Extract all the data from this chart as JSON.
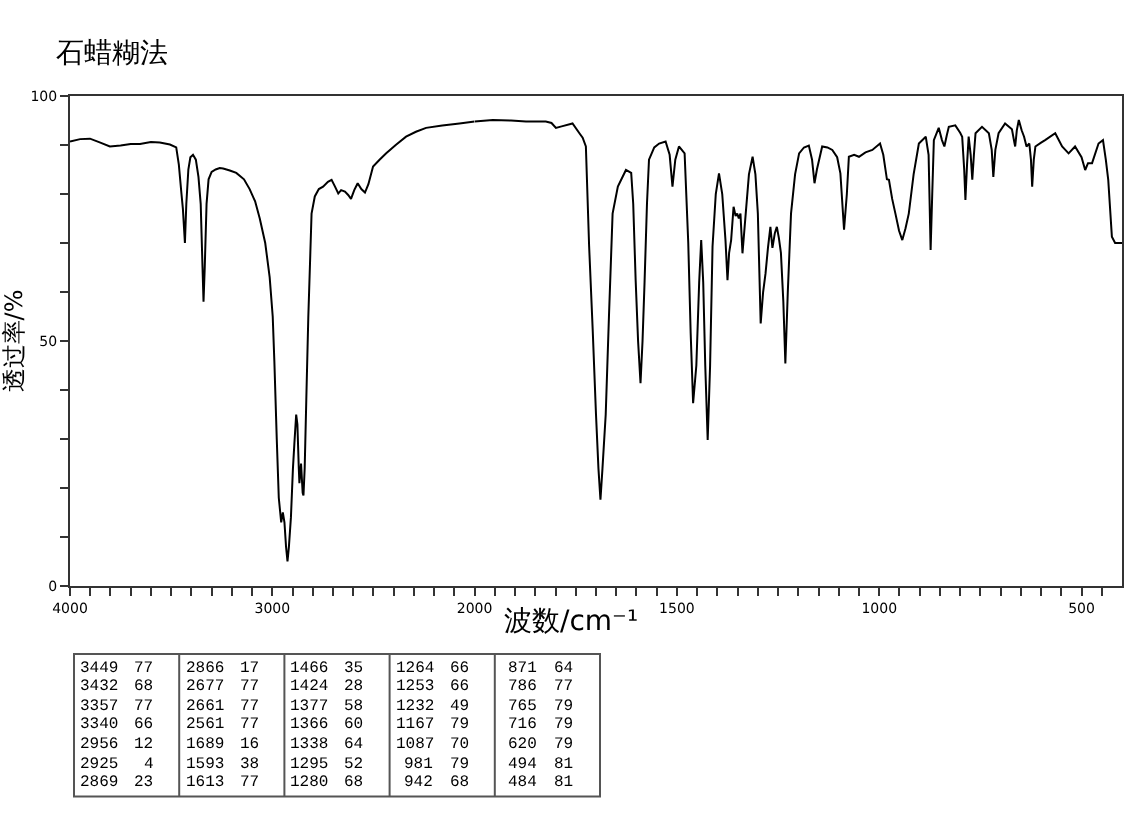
{
  "chart_data": [
    {
      "type": "line",
      "title": "石蜡糊法",
      "ylabel": "透过率/%",
      "x": [
        4000,
        3950,
        3901,
        3850,
        3803,
        3750,
        3700,
        3654,
        3600,
        3556,
        3506,
        3475,
        3462,
        3449,
        3442,
        3432,
        3425,
        3415,
        3405,
        3392,
        3378,
        3365,
        3354,
        3345,
        3340,
        3334,
        3325,
        3315,
        3300,
        3280,
        3260,
        3243,
        3210,
        3178,
        3140,
        3112,
        3085,
        3062,
        3035,
        3013,
        2998,
        2990,
        2978,
        2968,
        2956,
        2948,
        2940,
        2932,
        2925,
        2918,
        2908,
        2898,
        2891,
        2882,
        2876,
        2869,
        2866,
        2858,
        2850,
        2846,
        2840,
        2832,
        2822,
        2812,
        2806,
        2790,
        2770,
        2749,
        2725,
        2707,
        2690,
        2674,
        2660,
        2641,
        2625,
        2611,
        2595,
        2578,
        2560,
        2542,
        2525,
        2502,
        2470,
        2437,
        2390,
        2339,
        2290,
        2240,
        2160,
        2075,
        2000
      ],
      "series": [
        {
          "color": "#000000",
          "values": [
            90.7,
            91.2,
            91.3,
            90.5,
            89.7,
            89.9,
            90.2,
            90.2,
            90.6,
            90.5,
            90.1,
            89.5,
            86,
            80,
            77,
            70,
            78,
            85,
            87.5,
            88,
            87,
            83.5,
            78,
            65,
            58,
            65,
            78,
            83,
            84.5,
            85,
            85.3,
            85.2,
            84.8,
            84.3,
            83,
            81,
            78.5,
            75,
            70,
            63,
            55,
            46,
            30,
            18,
            13,
            15,
            13,
            8,
            5,
            8,
            14,
            24,
            29,
            35,
            33,
            24,
            21,
            25,
            19,
            18.5,
            24,
            38,
            55,
            68,
            76,
            79.5,
            81,
            81.5,
            82.5,
            82.9,
            81.5,
            80.1,
            80.8,
            80.5,
            79.8,
            79,
            80.8,
            82.2,
            81,
            80.3,
            82,
            85.6,
            87,
            88.3,
            90,
            91.7,
            92.7,
            93.5,
            94,
            94.4,
            94.8
          ]
        }
      ],
      "xlim": [
        4000,
        2000
      ],
      "xticks": [
        4000,
        {
          "value": 3900,
          "label": null
        },
        {
          "value": 3800,
          "label": null
        },
        {
          "value": 3700,
          "label": null
        },
        {
          "value": 3600,
          "label": null
        },
        {
          "value": 3500,
          "label": null
        },
        {
          "value": 3400,
          "label": null
        },
        {
          "value": 3300,
          "label": null
        },
        {
          "value": 3200,
          "label": null
        },
        {
          "value": 3100,
          "label": null
        },
        3000,
        {
          "value": 2900,
          "label": null
        },
        {
          "value": 2800,
          "label": null
        },
        {
          "value": 2700,
          "label": null
        },
        {
          "value": 2600,
          "label": null
        },
        {
          "value": 2500,
          "label": null
        },
        {
          "value": 2400,
          "label": null
        },
        {
          "value": 2300,
          "label": null
        },
        {
          "value": 2200,
          "label": null
        },
        {
          "value": 2100,
          "label": null
        },
        2000
      ],
      "ylim": [
        0,
        100
      ],
      "yticks": [
        0,
        {
          "value": 10,
          "label": null
        },
        {
          "value": 20,
          "label": null
        },
        {
          "value": 30,
          "label": null
        },
        {
          "value": 40,
          "label": null
        },
        50,
        {
          "value": 60,
          "label": null
        },
        {
          "value": 70,
          "label": null
        },
        {
          "value": 80,
          "label": null
        },
        {
          "value": 90,
          "label": null
        },
        100
      ],
      "annotations": [
        "3449 77",
        "3432 68",
        "3357 77",
        "3340 66",
        "2956 12",
        "2925 4",
        "2869 23",
        "2866 17",
        "2677 77",
        "2661 77",
        "2561 77",
        "1689 16",
        "1593 38",
        "1613 77",
        "1466 35",
        "1424 28",
        "1377 58",
        "1366 60",
        "1338 64",
        "1295 52",
        "1280 68",
        "1264 66",
        "1253 66",
        "1232 49",
        "1167 79",
        "1087 70",
        "981 79",
        "942 68",
        "871 64",
        "786 77",
        "765 79",
        "716 79",
        "620 79",
        "494 81",
        "484 81"
      ]
    },
    {
      "type": "line",
      "xlabel": "波数/cm⁻¹",
      "x": [
        2000,
        1955,
        1910,
        1873,
        1824,
        1810,
        1799,
        1785,
        1758,
        1741,
        1733,
        1725,
        1717,
        1708,
        1700,
        1694,
        1689,
        1684,
        1676,
        1668,
        1659,
        1646,
        1626,
        1613,
        1608,
        1602,
        1596,
        1590,
        1585,
        1580,
        1574,
        1569,
        1556,
        1544,
        1528,
        1518,
        1511,
        1504,
        1495,
        1481,
        1472,
        1466,
        1460,
        1452,
        1445,
        1440,
        1435,
        1430,
        1424,
        1418,
        1412,
        1404,
        1396,
        1388,
        1380,
        1375,
        1371,
        1366,
        1360,
        1355,
        1351,
        1347,
        1343,
        1338,
        1330,
        1322,
        1313,
        1306,
        1300,
        1293,
        1287,
        1281,
        1275,
        1269,
        1264,
        1258,
        1253,
        1248,
        1243,
        1237,
        1232,
        1226,
        1218,
        1208,
        1198,
        1186,
        1174,
        1166,
        1160,
        1154,
        1141,
        1128,
        1116,
        1104,
        1096,
        1087,
        1080,
        1075,
        1062,
        1050,
        1034,
        1017,
        998,
        990,
        981,
        976,
        968,
        960,
        951,
        943,
        935,
        927,
        915,
        902,
        885,
        878,
        873,
        869,
        865,
        853,
        845,
        839,
        833,
        828,
        812,
        800,
        795,
        790,
        787,
        783,
        779,
        774,
        770,
        766,
        762,
        746,
        729,
        722,
        718,
        713,
        705,
        689,
        672,
        666,
        664,
        660,
        655,
        648,
        642,
        636,
        629,
        625,
        622,
        618,
        614,
        600,
        590,
        565,
        548,
        532,
        516,
        500,
        491,
        484,
        474,
        458,
        447,
        440,
        434,
        425,
        417,
        405,
        400
      ],
      "series": [
        {
          "color": "#000000",
          "values": [
            94.8,
            95.1,
            95,
            94.8,
            94.8,
            94.5,
            93.5,
            93.8,
            94.4,
            92.4,
            91.5,
            89.7,
            69.4,
            52,
            35,
            24,
            17.6,
            24,
            35,
            55,
            76,
            81.5,
            84.9,
            84.3,
            78,
            62.4,
            50,
            41.4,
            50,
            62,
            78,
            87,
            89.5,
            90.3,
            90.7,
            88,
            81.5,
            87,
            89.7,
            88.3,
            70,
            51.6,
            37.3,
            45,
            62,
            70.6,
            62,
            45,
            29.8,
            45,
            69.3,
            80,
            84.2,
            80,
            70.6,
            62.4,
            68,
            70.6,
            77.4,
            75.5,
            76,
            75,
            76,
            67.9,
            76,
            84,
            87.6,
            84,
            76,
            53.6,
            60,
            63.8,
            69,
            73.3,
            69,
            72,
            73.3,
            71,
            68,
            58,
            45.4,
            60,
            76,
            84,
            88.3,
            89.5,
            89.9,
            87,
            82.2,
            85,
            89.7,
            89.5,
            89,
            87.5,
            84.2,
            72.7,
            80,
            87.6,
            88,
            87.6,
            88.5,
            89,
            90.3,
            88,
            83,
            82.9,
            79,
            76,
            72.5,
            70.6,
            73,
            76,
            84,
            90.3,
            91.7,
            88,
            68.6,
            80,
            91,
            93.5,
            91,
            89.7,
            92,
            93.7,
            94,
            92.5,
            91.7,
            85,
            78.8,
            86,
            91.7,
            88,
            82.9,
            88,
            92.4,
            93.7,
            92.4,
            89,
            83.5,
            89,
            92.4,
            94.4,
            93.2,
            90.5,
            89.7,
            93,
            95.1,
            93,
            91.7,
            89.7,
            90.3,
            87,
            81.5,
            87,
            89.7,
            90.5,
            91,
            92.4,
            89.7,
            88.3,
            89.7,
            87.5,
            84.9,
            86.3,
            86.3,
            90.3,
            91,
            87,
            82.9,
            71.3,
            70,
            70,
            70
          ]
        }
      ],
      "xlim": [
        2000,
        400
      ],
      "xticks": [
        {
          "value": 1950,
          "label": null
        },
        {
          "value": 1900,
          "label": null
        },
        {
          "value": 1850,
          "label": null
        },
        {
          "value": 1800,
          "label": null
        },
        {
          "value": 1750,
          "label": null
        },
        {
          "value": 1700,
          "label": null
        },
        {
          "value": 1650,
          "label": null
        },
        {
          "value": 1600,
          "label": null
        },
        {
          "value": 1550,
          "label": null
        },
        1500,
        {
          "value": 1450,
          "label": null
        },
        {
          "value": 1400,
          "label": null
        },
        {
          "value": 1350,
          "label": null
        },
        {
          "value": 1300,
          "label": null
        },
        {
          "value": 1250,
          "label": null
        },
        {
          "value": 1200,
          "label": null
        },
        {
          "value": 1150,
          "label": null
        },
        {
          "value": 1100,
          "label": null
        },
        {
          "value": 1050,
          "label": null
        },
        1000,
        {
          "value": 950,
          "label": null
        },
        {
          "value": 900,
          "label": null
        },
        {
          "value": 850,
          "label": null
        },
        {
          "value": 800,
          "label": null
        },
        {
          "value": 750,
          "label": null
        },
        {
          "value": 700,
          "label": null
        },
        {
          "value": 650,
          "label": null
        },
        {
          "value": 600,
          "label": null
        },
        {
          "value": 550,
          "label": null
        },
        500,
        {
          "value": 450,
          "label": null
        }
      ],
      "ylim": [
        0,
        100
      ],
      "tick_labels": "x"
    }
  ]
}
